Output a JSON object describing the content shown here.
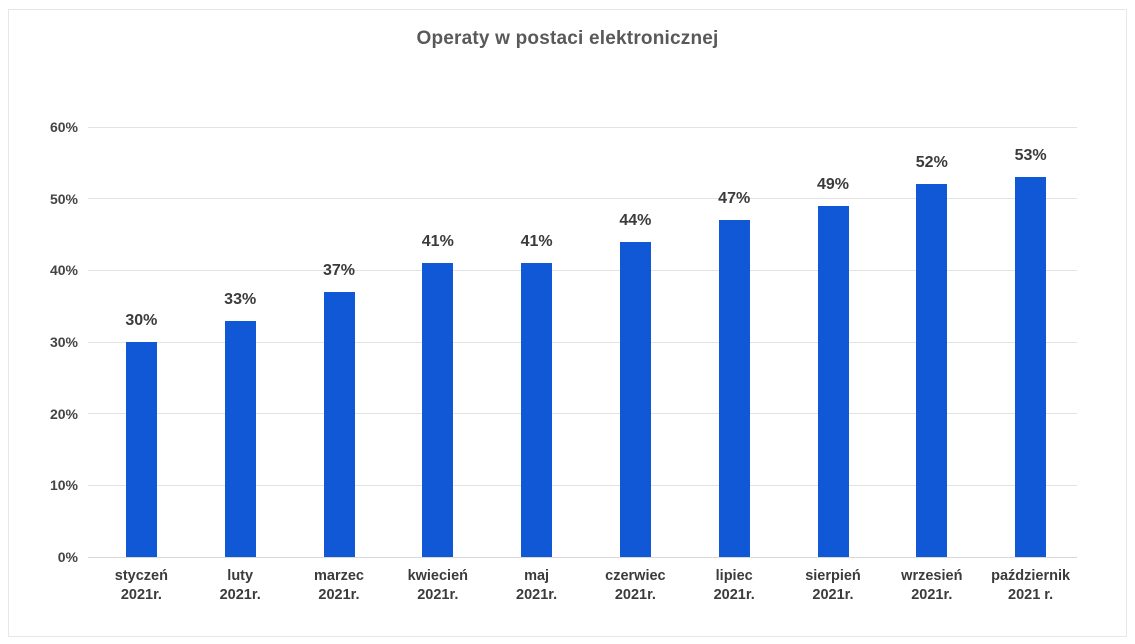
{
  "chart_data": {
    "type": "bar",
    "title": "Operaty w postaci elektronicznej",
    "categories": [
      [
        "styczeń",
        "2021r."
      ],
      [
        "luty",
        "2021r."
      ],
      [
        "marzec",
        "2021r."
      ],
      [
        "kwiecień",
        "2021r."
      ],
      [
        "maj",
        "2021r."
      ],
      [
        "czerwiec",
        "2021r."
      ],
      [
        "lipiec",
        "2021r."
      ],
      [
        "sierpień",
        "2021r."
      ],
      [
        "wrzesień",
        "2021r."
      ],
      [
        "październik",
        "2021 r."
      ]
    ],
    "values": [
      30,
      33,
      37,
      41,
      41,
      44,
      47,
      49,
      52,
      53
    ],
    "value_labels": [
      "30%",
      "33%",
      "37%",
      "41%",
      "41%",
      "44%",
      "47%",
      "49%",
      "52%",
      "53%"
    ],
    "xlabel": "",
    "ylabel": "",
    "ylim": [
      0,
      60
    ],
    "ytick_step": 10,
    "ytick_labels": [
      "0%",
      "10%",
      "20%",
      "30%",
      "40%",
      "50%",
      "60%"
    ],
    "grid": true,
    "legend": "none",
    "colors": {
      "bar": "#1158d6",
      "gridline": "#e3e3e3",
      "baseline": "#d9d9d9",
      "title": "#595959",
      "axis_text": "#444444",
      "value_text": "#3b3b3b",
      "frame_border": "#e7e7e7",
      "background": "#ffffff"
    }
  }
}
